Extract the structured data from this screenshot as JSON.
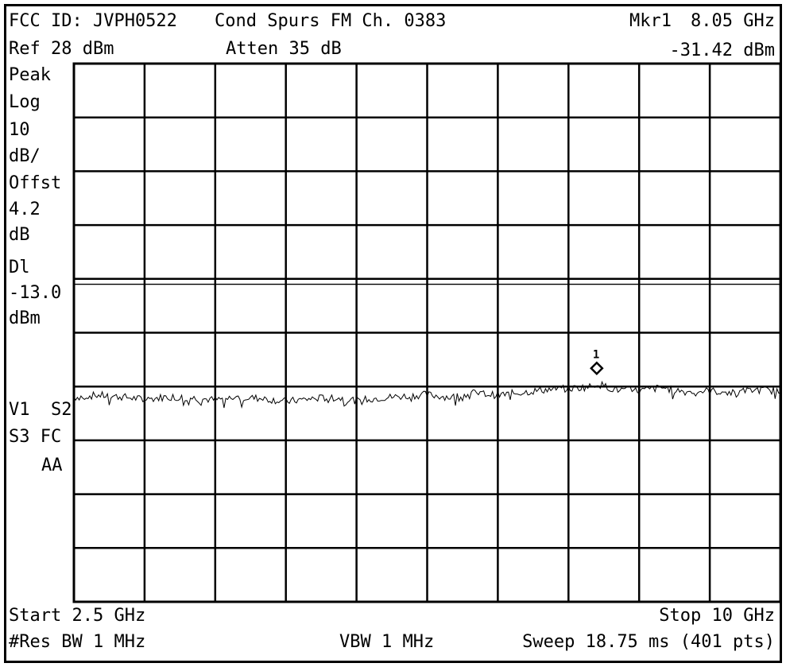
{
  "header": {
    "fcc_id": "FCC ID: JVPH0522",
    "title": "Cond Spurs FM Ch. 0383",
    "marker_label": "Mkr1",
    "marker_freq": "8.05 GHz",
    "ref_level": "Ref 28 dBm",
    "attenuation": "Atten 35 dB",
    "marker_level": "-31.42 dBm"
  },
  "sidebar": {
    "detector": "Peak",
    "scale_type": "Log",
    "scale_value": "10",
    "scale_unit": "dB/",
    "offset_label": "Offst",
    "offset_value": "4.2",
    "offset_unit": "dB",
    "display_line_label": "Dl",
    "display_line_value": "-13.0",
    "display_line_unit": "dBm",
    "trace_flags_1": "V1  S2",
    "trace_flags_2": "S3 FC",
    "trace_flags_3": "AA"
  },
  "footer": {
    "start": "Start 2.5 GHz",
    "stop": "Stop 10 GHz",
    "res_bw": "#Res BW 1 MHz",
    "vbw": "VBW 1 MHz",
    "sweep": "Sweep 18.75 ms (401 pts)"
  },
  "marker": {
    "number": "1"
  },
  "colors": {
    "trace": "#000000",
    "grid": "#000000",
    "background": "#ffffff"
  },
  "chart_data": {
    "type": "line",
    "x_unit": "GHz",
    "y_unit": "dBm",
    "xlim": [
      2.5,
      10
    ],
    "ylim": [
      -72,
      28
    ],
    "y_divisions": 10,
    "x_divisions": 10,
    "display_line": -13.0,
    "marker": {
      "x": 8.05,
      "y": -31.42,
      "label": "1"
    },
    "series": [
      {
        "x": [
          2.5,
          2.75,
          3.0,
          3.25,
          3.5,
          3.75,
          4.0,
          4.25,
          4.5,
          4.75,
          5.0,
          5.25,
          5.5,
          5.75,
          6.0,
          6.25,
          6.5,
          6.75,
          7.0,
          7.25,
          7.5,
          7.75,
          8.0,
          8.05,
          8.25,
          8.5,
          8.75,
          9.0,
          9.25,
          9.5,
          9.75,
          10.0
        ],
        "y": [
          -34.0,
          -33.6,
          -33.9,
          -34.4,
          -33.9,
          -34.1,
          -34.5,
          -34.0,
          -34.2,
          -34.8,
          -34.3,
          -34.0,
          -34.6,
          -34.1,
          -33.8,
          -33.5,
          -34.0,
          -33.2,
          -33.6,
          -33.1,
          -32.6,
          -32.4,
          -32.0,
          -31.42,
          -32.6,
          -32.8,
          -32.2,
          -33.0,
          -32.8,
          -33.2,
          -32.6,
          -32.8
        ]
      }
    ]
  }
}
